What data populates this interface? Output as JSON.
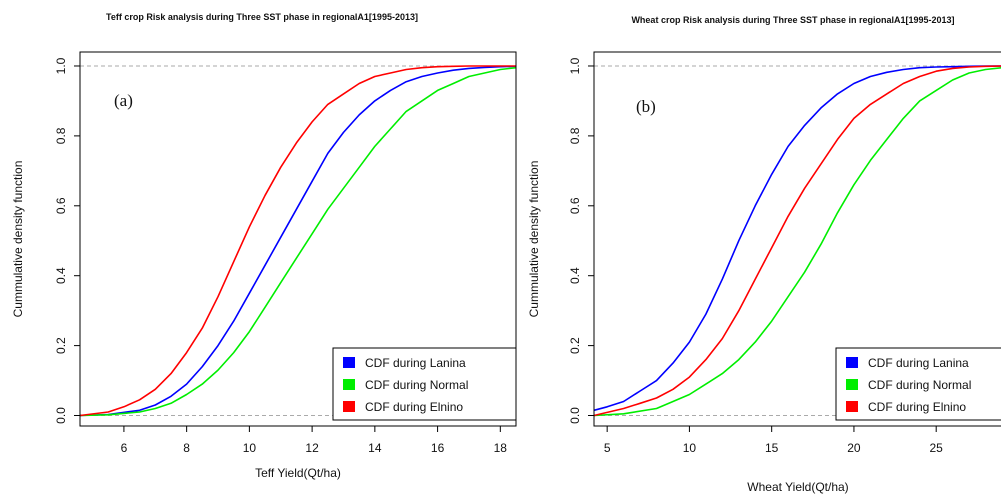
{
  "chart_data": [
    {
      "type": "line",
      "title": "Teff crop Risk analysis during Three SST phase in regionalA1[1995-2013]",
      "panel_label": "(a)",
      "xlabel": "Teff Yield(Qt/ha)",
      "ylabel": "Cummulative density function",
      "xlim": [
        4.6,
        18.5
      ],
      "ylim": [
        -0.03,
        1.04
      ],
      "xticks": [
        6,
        8,
        10,
        12,
        14,
        16,
        18
      ],
      "yticks": [
        0.0,
        0.2,
        0.4,
        0.6,
        0.8,
        1.0
      ],
      "ytick_labels": [
        "0.0",
        "0.2",
        "0.4",
        "0.6",
        "0.8",
        "1.0"
      ],
      "reference_lines": [
        0,
        1
      ],
      "legend_position": "bottom-right",
      "series": [
        {
          "name": "CDF during Lanina",
          "color": "#0000ff",
          "x": [
            4.6,
            5.5,
            6.5,
            7.0,
            7.5,
            8.0,
            8.5,
            9.0,
            9.5,
            10.0,
            10.5,
            11.0,
            11.5,
            12.0,
            12.5,
            13.0,
            13.5,
            14.0,
            14.5,
            15.0,
            15.5,
            16.0,
            16.5,
            17.0,
            17.5,
            18.0,
            18.5
          ],
          "y": [
            0.0,
            0.003,
            0.015,
            0.03,
            0.055,
            0.09,
            0.14,
            0.2,
            0.27,
            0.35,
            0.43,
            0.51,
            0.59,
            0.67,
            0.75,
            0.81,
            0.86,
            0.9,
            0.93,
            0.955,
            0.97,
            0.98,
            0.988,
            0.993,
            0.996,
            0.998,
            0.999
          ]
        },
        {
          "name": "CDF during Normal",
          "color": "#00ee00",
          "x": [
            4.6,
            5.5,
            6.5,
            7.0,
            7.5,
            8.0,
            8.5,
            9.0,
            9.5,
            10.0,
            10.5,
            11.0,
            11.5,
            12.0,
            12.5,
            13.0,
            13.5,
            14.0,
            14.5,
            15.0,
            15.5,
            16.0,
            16.5,
            17.0,
            17.5,
            18.0,
            18.5
          ],
          "y": [
            0.0,
            0.002,
            0.01,
            0.02,
            0.035,
            0.06,
            0.09,
            0.13,
            0.18,
            0.24,
            0.31,
            0.38,
            0.45,
            0.52,
            0.59,
            0.65,
            0.71,
            0.77,
            0.82,
            0.87,
            0.9,
            0.93,
            0.95,
            0.97,
            0.98,
            0.99,
            0.995
          ]
        },
        {
          "name": "CDF during Elnino",
          "color": "#ff0000",
          "x": [
            4.6,
            5.5,
            6.0,
            6.5,
            7.0,
            7.5,
            8.0,
            8.5,
            9.0,
            9.5,
            10.0,
            10.5,
            11.0,
            11.5,
            12.0,
            12.5,
            13.0,
            13.5,
            14.0,
            14.5,
            15.0,
            15.5,
            16.0,
            16.5,
            17.0,
            18.5
          ],
          "y": [
            0.0,
            0.01,
            0.025,
            0.045,
            0.075,
            0.12,
            0.18,
            0.25,
            0.34,
            0.44,
            0.54,
            0.63,
            0.71,
            0.78,
            0.84,
            0.89,
            0.92,
            0.95,
            0.97,
            0.98,
            0.99,
            0.995,
            0.998,
            0.999,
            1.0,
            1.0
          ]
        }
      ]
    },
    {
      "type": "line",
      "title": "Wheat crop Risk analysis during Three SST phase in regionalA1[1995-2013]",
      "panel_label": "(b)",
      "xlabel": "Wheat Yield(Qt/ha)",
      "ylabel": "Cummulative density function",
      "xlim": [
        4.2,
        29.0
      ],
      "ylim": [
        -0.03,
        1.04
      ],
      "xticks": [
        5,
        10,
        15,
        20,
        25
      ],
      "yticks": [
        0.0,
        0.2,
        0.4,
        0.6,
        0.8,
        1.0
      ],
      "ytick_labels": [
        "0.0",
        "0.2",
        "0.4",
        "0.6",
        "0.8",
        "1.0"
      ],
      "reference_lines": [
        0,
        1
      ],
      "legend_position": "bottom-right",
      "series": [
        {
          "name": "CDF during Lanina",
          "color": "#0000ff",
          "x": [
            4.2,
            5.0,
            6.0,
            7.0,
            8.0,
            9.0,
            10.0,
            11.0,
            12.0,
            13.0,
            14.0,
            15.0,
            16.0,
            17.0,
            18.0,
            19.0,
            20.0,
            21.0,
            22.0,
            23.0,
            24.0,
            25.0,
            26.0,
            27.0,
            28.0,
            29.0
          ],
          "y": [
            0.015,
            0.025,
            0.04,
            0.07,
            0.1,
            0.15,
            0.21,
            0.29,
            0.39,
            0.5,
            0.6,
            0.69,
            0.77,
            0.83,
            0.88,
            0.92,
            0.95,
            0.97,
            0.982,
            0.99,
            0.995,
            0.997,
            0.998,
            0.999,
            1.0,
            1.0
          ]
        },
        {
          "name": "CDF during Normal",
          "color": "#00ee00",
          "x": [
            4.2,
            6.0,
            8.0,
            9.0,
            10.0,
            11.0,
            12.0,
            13.0,
            14.0,
            15.0,
            16.0,
            17.0,
            18.0,
            19.0,
            20.0,
            21.0,
            22.0,
            23.0,
            24.0,
            25.0,
            26.0,
            27.0,
            28.0,
            29.0
          ],
          "y": [
            0.0,
            0.005,
            0.02,
            0.04,
            0.06,
            0.09,
            0.12,
            0.16,
            0.21,
            0.27,
            0.34,
            0.41,
            0.49,
            0.58,
            0.66,
            0.73,
            0.79,
            0.85,
            0.9,
            0.93,
            0.96,
            0.98,
            0.99,
            0.995
          ]
        },
        {
          "name": "CDF during Elnino",
          "color": "#ff0000",
          "x": [
            4.2,
            6.0,
            7.0,
            8.0,
            9.0,
            10.0,
            11.0,
            12.0,
            13.0,
            14.0,
            15.0,
            16.0,
            17.0,
            18.0,
            19.0,
            20.0,
            21.0,
            22.0,
            23.0,
            24.0,
            25.0,
            26.0,
            27.0,
            28.0,
            29.0
          ],
          "y": [
            0.0,
            0.02,
            0.035,
            0.05,
            0.075,
            0.11,
            0.16,
            0.22,
            0.3,
            0.39,
            0.48,
            0.57,
            0.65,
            0.72,
            0.79,
            0.85,
            0.89,
            0.92,
            0.95,
            0.97,
            0.985,
            0.993,
            0.997,
            0.999,
            1.0
          ]
        }
      ]
    }
  ]
}
